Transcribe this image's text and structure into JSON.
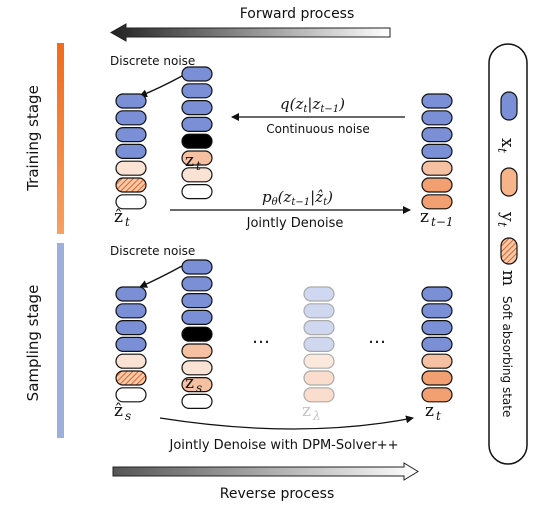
{
  "arrows": {
    "forward_label": "Forward process",
    "reverse_label": "Reverse process"
  },
  "training": {
    "stage_label": "Training  stage",
    "discrete_noise_label": "Discrete noise",
    "zt_hat_label": "ẑ",
    "zt_hat_sub": "t",
    "zt_label": "z",
    "zt_sub": "t",
    "zt1_label": "z",
    "zt1_sub": "t−1",
    "q_formula": "q(z",
    "q_formula_sub1": "t",
    "q_formula_mid": "|z",
    "q_formula_sub2": "t−1",
    "q_formula_end": ")",
    "continuous_noise_label": "Continuous noise",
    "p_formula": "p",
    "p_sub": "θ",
    "p_mid": "(z",
    "p_sub2": "t−1",
    "p_mid2": "|ẑ",
    "p_sub3": "t",
    "p_end": ")",
    "jointly_denoise_label": "Jointly Denoise"
  },
  "sampling": {
    "stage_label": "Sampling  stage",
    "discrete_noise_label": "Discrete noise",
    "zs_hat_label": "ẑ",
    "zs_hat_sub": "s",
    "zs_label": "z",
    "zs_sub": "s",
    "zlambda_label": "z",
    "zlambda_sub": "λ",
    "zt_label": "z",
    "zt_sub": "t",
    "ellipsis_left": "…",
    "ellipsis_right": "…",
    "jointly_denoise_label": "Jointly Denoise with DPM-Solver++"
  },
  "legend": {
    "x_label": "x",
    "x_sub": "t",
    "y_label": "y",
    "y_sub": "t",
    "m_label": "m",
    "soft_label": "Soft absorbing state"
  },
  "colors": {
    "blue": "#7a8fd6",
    "orange_deep": "#f2a071",
    "orange_light": "#f9dccb",
    "stage_orange": "#f07a30",
    "stage_blue": "#9db0dc"
  }
}
